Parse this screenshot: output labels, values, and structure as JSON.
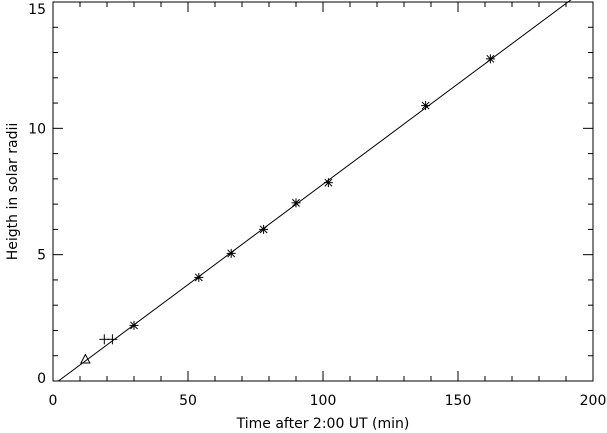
{
  "chart_data": {
    "type": "scatter",
    "xlabel": "Time after 2:00 UT (min)",
    "ylabel": "Heigth in solar radii",
    "xlim": [
      0,
      200
    ],
    "ylim": [
      0,
      15
    ],
    "xticks": [
      0,
      50,
      100,
      150,
      200
    ],
    "xtick_labels": [
      "0",
      "50",
      "100",
      "150",
      "200"
    ],
    "yticks": [
      0,
      5,
      10,
      15
    ],
    "ytick_labels": [
      "0",
      "5",
      "10",
      "15"
    ],
    "grid": false,
    "series": [
      {
        "marker": "triangle",
        "points": [
          {
            "x": 12,
            "y": 0.85
          }
        ]
      },
      {
        "marker": "plus",
        "points": [
          {
            "x": 19,
            "y": 1.65
          },
          {
            "x": 22,
            "y": 1.65
          }
        ]
      },
      {
        "marker": "asterisk",
        "points": [
          {
            "x": 30,
            "y": 2.2
          },
          {
            "x": 54,
            "y": 4.1
          },
          {
            "x": 66,
            "y": 5.05
          },
          {
            "x": 78,
            "y": 6.0
          },
          {
            "x": 90,
            "y": 7.05
          },
          {
            "x": 102,
            "y": 7.85
          },
          {
            "x": 138,
            "y": 10.9
          },
          {
            "x": 162,
            "y": 12.75
          }
        ]
      }
    ],
    "fit_line": {
      "x": [
        2,
        192
      ],
      "y": [
        0,
        15.1
      ]
    }
  }
}
